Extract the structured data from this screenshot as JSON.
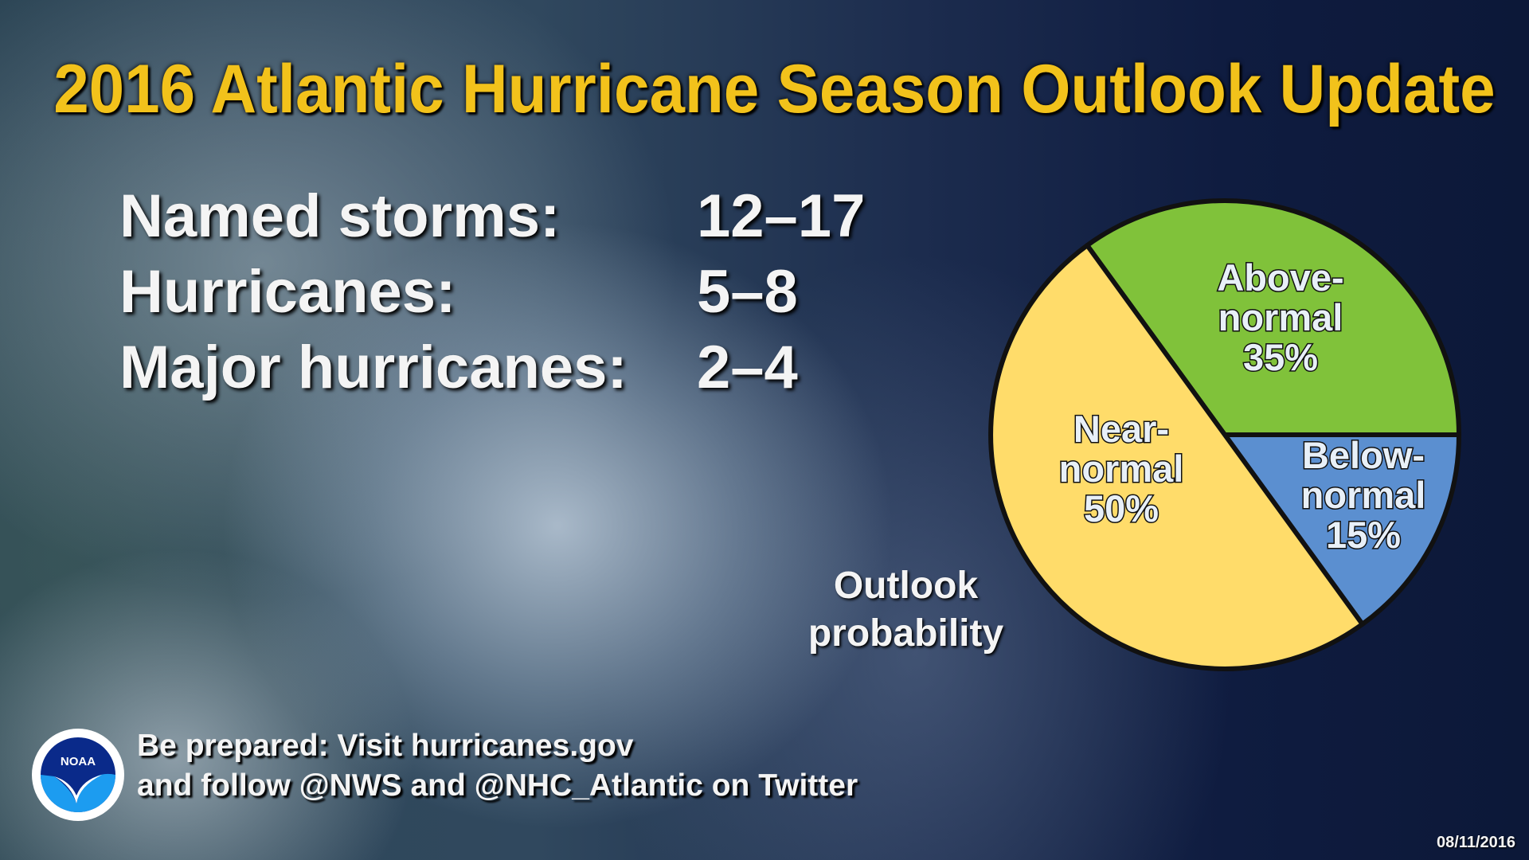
{
  "title": "2016 Atlantic Hurricane Season Outlook Update",
  "stats": [
    {
      "label": "Named storms:",
      "value": "12–17"
    },
    {
      "label": "Hurricanes:",
      "value": "5–8"
    },
    {
      "label": "Major hurricanes:",
      "value": "2–4"
    }
  ],
  "chart_data": {
    "type": "pie",
    "title": "Outlook probability",
    "slices": [
      {
        "name": "Above-normal",
        "value": 35,
        "label_lines": [
          "Above-",
          "normal",
          "35%"
        ],
        "color": "#80c23a"
      },
      {
        "name": "Below-normal",
        "value": 15,
        "label_lines": [
          "Below-",
          "normal",
          "15%"
        ],
        "color": "#5b8fd0"
      },
      {
        "name": "Near-normal",
        "value": 50,
        "label_lines": [
          "Near-",
          "normal",
          "50%"
        ],
        "color": "#ffdc6a"
      }
    ]
  },
  "footer": {
    "line1": "Be prepared: Visit hurricanes.gov",
    "line2": "and follow @NWS and @NHC_Atlantic on Twitter"
  },
  "logo": {
    "text": "NOAA",
    "icon": "noaa-logo"
  },
  "date": "08/11/2016",
  "colors": {
    "title": "#f2c21b",
    "text": "#f4f4f4"
  }
}
